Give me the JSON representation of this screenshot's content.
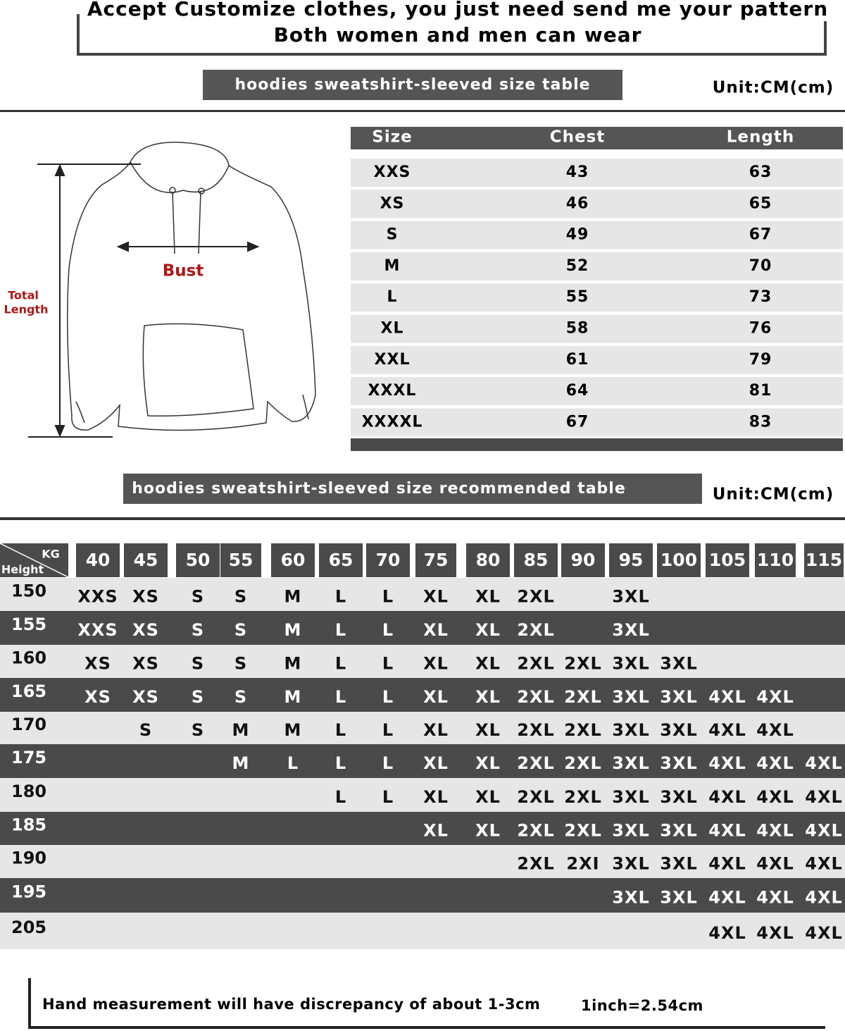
{
  "header": {
    "line1": "Accept Customize clothes, you just need send me your pattern",
    "line2": "Both women and men can wear"
  },
  "size_section": {
    "title": "hoodies sweatshirt-sleeved size  table",
    "unit": "Unit:CM(cm)"
  },
  "diagram": {
    "bust": "Bust",
    "total_length": [
      "Total",
      "Length"
    ]
  },
  "size_table": {
    "columns": [
      "Size",
      "Chest",
      "Length"
    ],
    "rows": [
      [
        "XXS",
        43,
        63
      ],
      [
        "XS",
        46,
        65
      ],
      [
        "S",
        49,
        67
      ],
      [
        "M",
        52,
        70
      ],
      [
        "L",
        55,
        73
      ],
      [
        "XL",
        58,
        76
      ],
      [
        "XXL",
        61,
        79
      ],
      [
        "XXXL",
        64,
        81
      ],
      [
        "XXXXL",
        67,
        83
      ]
    ]
  },
  "recommend_section": {
    "title": "hoodies sweatshirt-sleeved size recommended table",
    "unit": "Unit:CM(cm)"
  },
  "recommend_table": {
    "corner_top": "KG",
    "corner_bottom": "Height",
    "weights": [
      40,
      45,
      50,
      55,
      60,
      65,
      70,
      75,
      80,
      85,
      90,
      95,
      100,
      105,
      110,
      115
    ],
    "rows": [
      {
        "height": 150,
        "cells": [
          "XXS",
          "XS",
          "S",
          "S",
          "M",
          "L",
          "L",
          "XL",
          "XL",
          "2XL",
          null,
          "3XL",
          null,
          null,
          null,
          null
        ]
      },
      {
        "height": 155,
        "cells": [
          "XXS",
          "XS",
          "S",
          "S",
          "M",
          "L",
          "L",
          "XL",
          "XL",
          "2XL",
          null,
          "3XL",
          null,
          null,
          null,
          null
        ]
      },
      {
        "height": 160,
        "cells": [
          "XS",
          "XS",
          "S",
          "S",
          "M",
          "L",
          "L",
          "XL",
          "XL",
          "2XL",
          "2XL",
          "3XL",
          "3XL",
          null,
          null,
          null
        ]
      },
      {
        "height": 165,
        "cells": [
          "XS",
          "XS",
          "S",
          "S",
          "M",
          "L",
          "L",
          "XL",
          "XL",
          "2XL",
          "2XL",
          "3XL",
          "3XL",
          "4XL",
          "4XL",
          null
        ]
      },
      {
        "height": 170,
        "cells": [
          null,
          "S",
          "S",
          "M",
          "M",
          "L",
          "L",
          "XL",
          "XL",
          "2XL",
          "2XL",
          "3XL",
          "3XL",
          "4XL",
          "4XL",
          null
        ]
      },
      {
        "height": 175,
        "cells": [
          null,
          null,
          null,
          "M",
          "L",
          "L",
          "L",
          "XL",
          "XL",
          "2XL",
          "2XL",
          "3XL",
          "3XL",
          "4XL",
          "4XL",
          "4XL"
        ]
      },
      {
        "height": 180,
        "cells": [
          null,
          null,
          null,
          null,
          null,
          "L",
          "L",
          "XL",
          "XL",
          "2XL",
          "2XL",
          "3XL",
          "3XL",
          "4XL",
          "4XL",
          "4XL"
        ]
      },
      {
        "height": 185,
        "cells": [
          null,
          null,
          null,
          null,
          null,
          null,
          null,
          "XL",
          "XL",
          "2XL",
          "2XL",
          "3XL",
          "3XL",
          "4XL",
          "4XL",
          "4XL"
        ]
      },
      {
        "height": 190,
        "cells": [
          null,
          null,
          null,
          null,
          null,
          null,
          null,
          null,
          null,
          "2XL",
          "2XI",
          "3XL",
          "3XL",
          "4XL",
          "4XL",
          "4XL"
        ]
      },
      {
        "height": 195,
        "cells": [
          null,
          null,
          null,
          null,
          null,
          null,
          null,
          null,
          null,
          null,
          null,
          "3XL",
          "3XL",
          "4XL",
          "4XL",
          "4XL"
        ]
      },
      {
        "height": 205,
        "cells": [
          null,
          null,
          null,
          null,
          null,
          null,
          null,
          null,
          null,
          null,
          null,
          null,
          null,
          "4XL",
          "4XL",
          "4XL"
        ]
      }
    ]
  },
  "footer": {
    "note": "Hand measurement will have discrepancy of about  1-3cm",
    "conversion": "1inch=2.54cm"
  }
}
